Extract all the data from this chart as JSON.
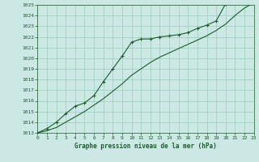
{
  "title": "Graphe pression niveau de la mer (hPa)",
  "bg_color": "#cce8e4",
  "grid_color": "#99ccbb",
  "line_color": "#1a5c2a",
  "xlim": [
    0,
    23
  ],
  "ylim": [
    1013,
    1025
  ],
  "yticks": [
    1013,
    1014,
    1015,
    1016,
    1017,
    1018,
    1019,
    1020,
    1021,
    1022,
    1023,
    1024,
    1025
  ],
  "xticks": [
    0,
    1,
    2,
    3,
    4,
    5,
    6,
    7,
    8,
    9,
    10,
    11,
    12,
    13,
    14,
    15,
    16,
    17,
    18,
    19,
    20,
    21,
    22,
    23
  ],
  "series1_x": [
    0,
    1,
    2,
    3,
    4,
    5,
    6,
    7,
    8,
    9,
    10,
    11,
    12,
    13,
    14,
    15,
    16,
    17,
    18,
    19,
    20,
    21,
    22,
    23
  ],
  "series1_y": [
    1013.0,
    1013.4,
    1014.0,
    1014.8,
    1015.5,
    1015.8,
    1016.5,
    1017.8,
    1019.0,
    1020.2,
    1021.5,
    1021.8,
    1021.8,
    1022.0,
    1022.1,
    1022.2,
    1022.4,
    1022.8,
    1023.1,
    1023.5,
    1025.1,
    1025.2,
    1025.2,
    1025.3
  ],
  "series2_x": [
    0,
    1,
    2,
    3,
    4,
    5,
    6,
    7,
    8,
    9,
    10,
    11,
    12,
    13,
    14,
    15,
    16,
    17,
    18,
    19,
    20,
    21,
    22,
    23
  ],
  "series2_y": [
    1013.0,
    1013.2,
    1013.5,
    1014.0,
    1014.5,
    1015.0,
    1015.6,
    1016.2,
    1016.9,
    1017.6,
    1018.4,
    1019.0,
    1019.6,
    1020.1,
    1020.5,
    1020.9,
    1021.3,
    1021.7,
    1022.1,
    1022.6,
    1023.2,
    1024.0,
    1024.7,
    1025.2
  ]
}
